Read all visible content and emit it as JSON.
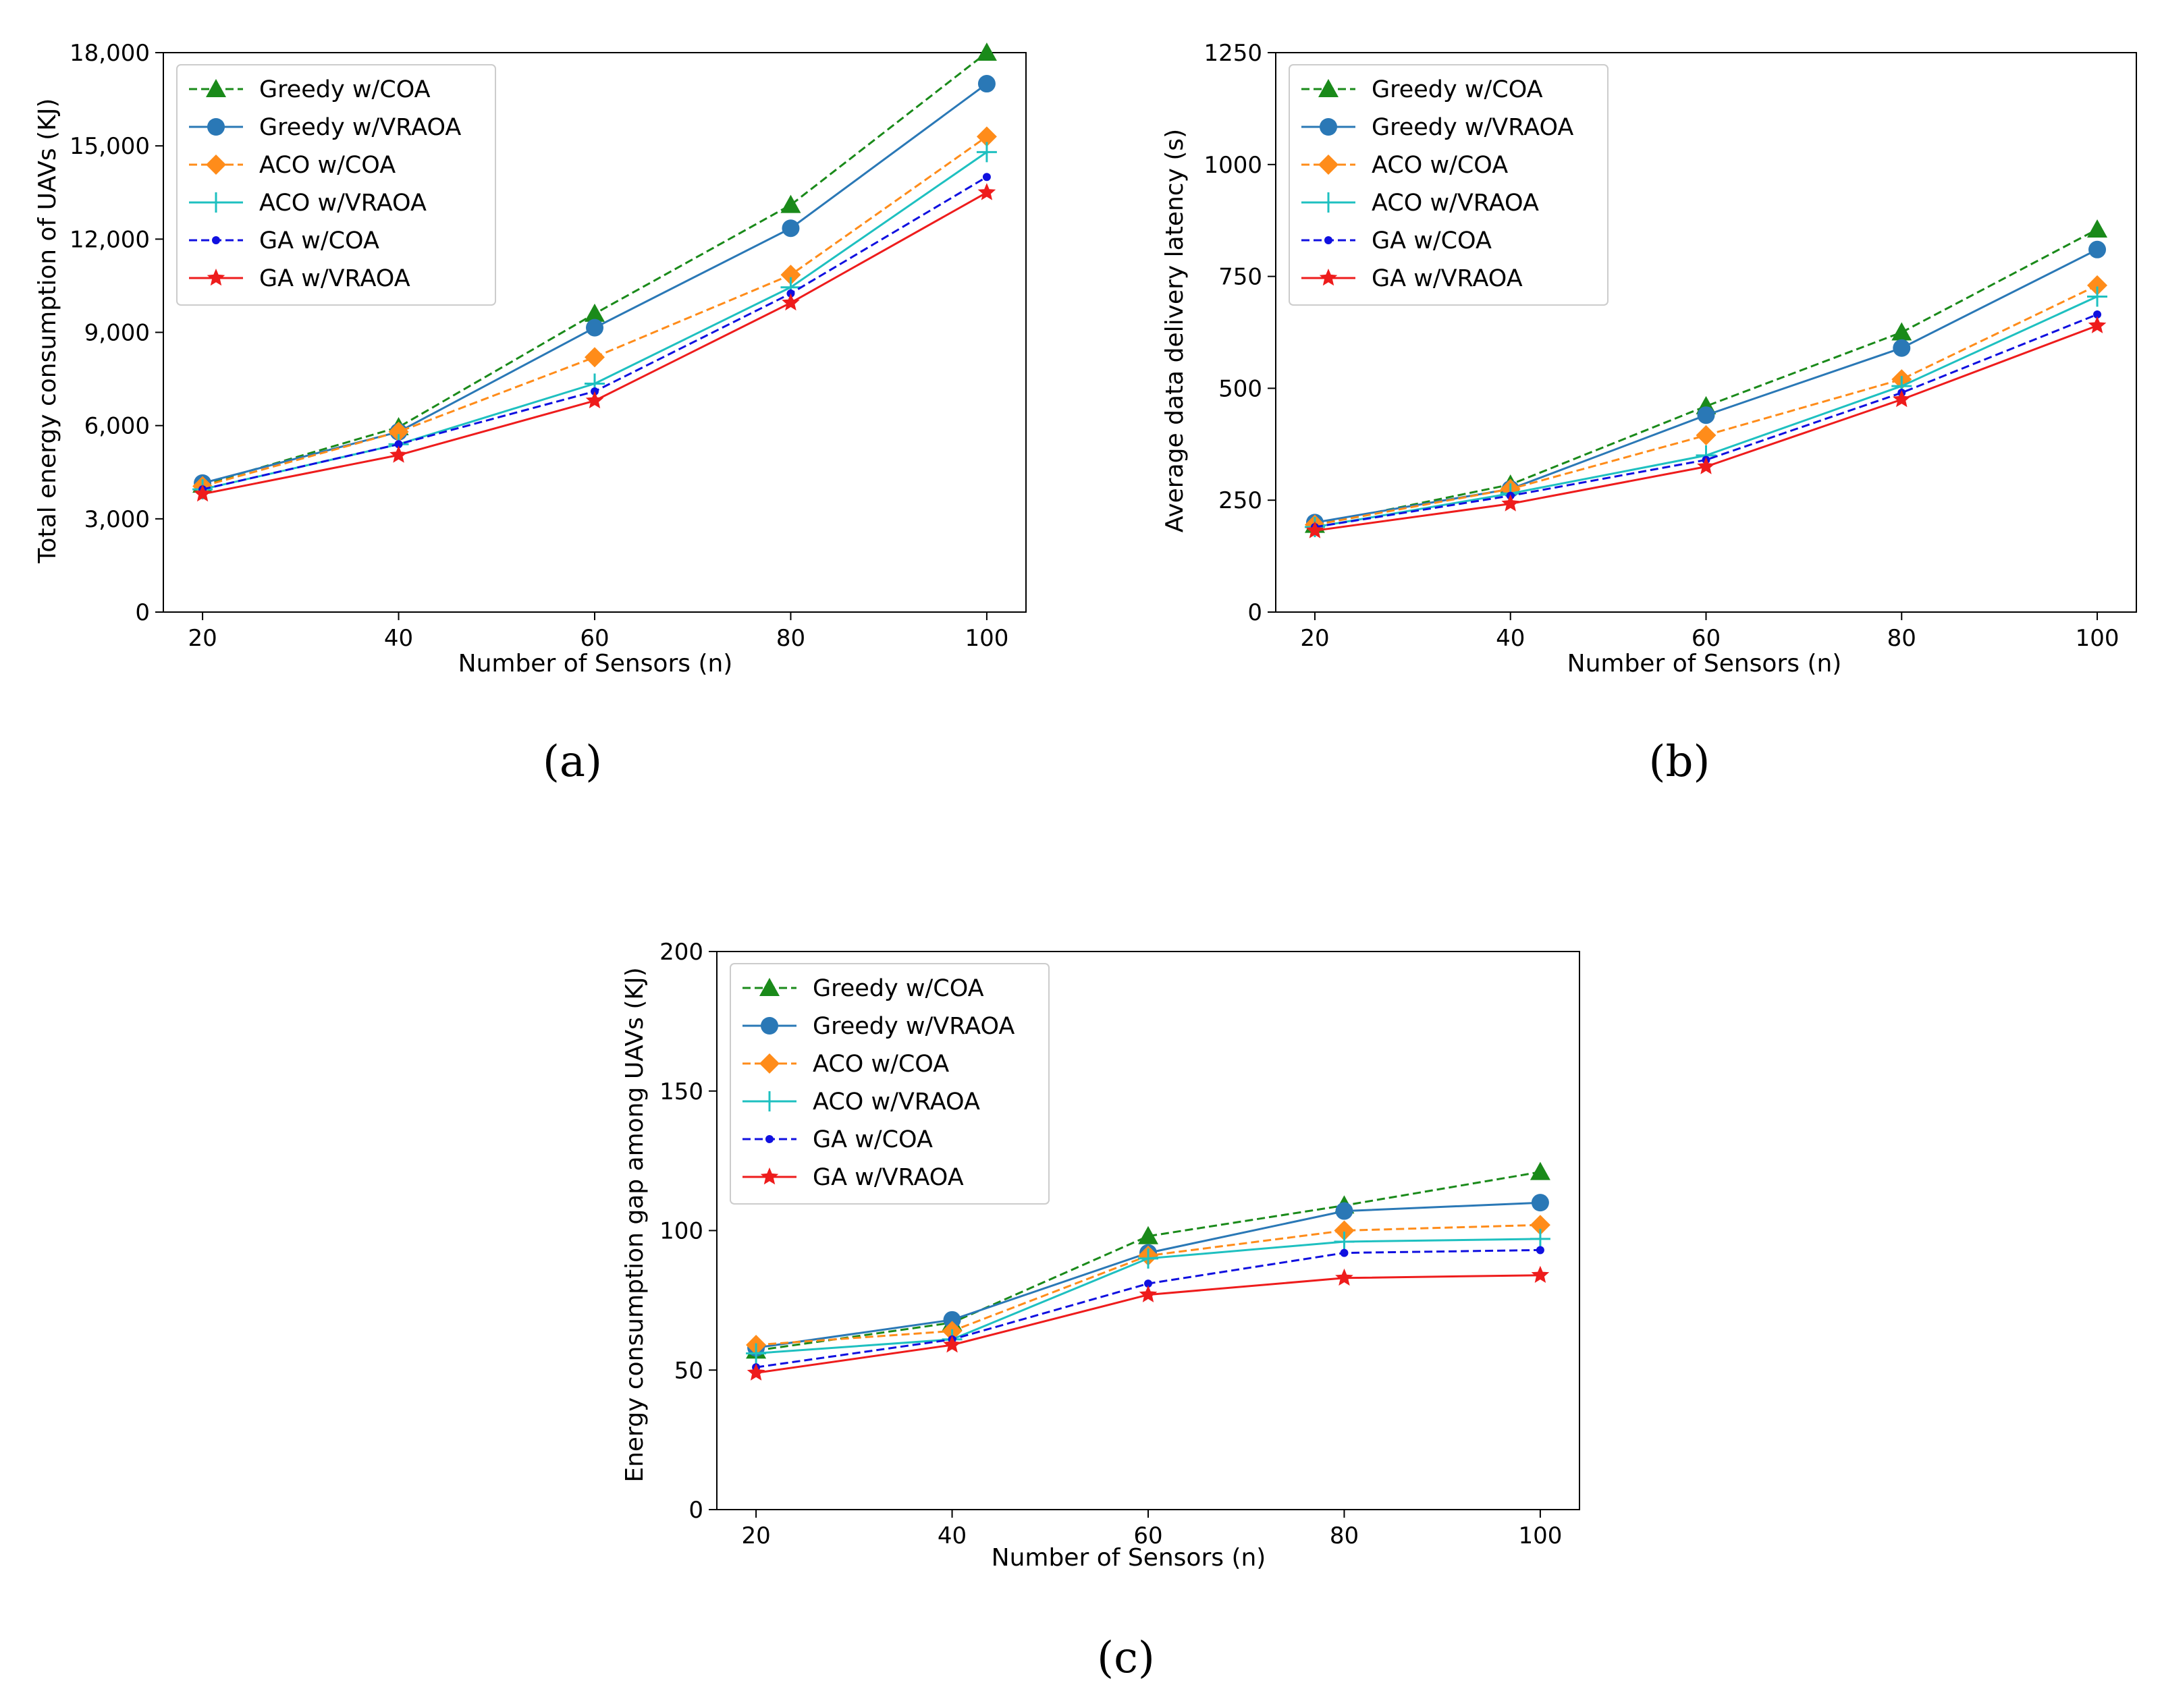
{
  "figure": {
    "captions": [
      "(a)",
      "(b)",
      "(c)"
    ]
  },
  "colors": {
    "Greedy w/COA": "#1a8a1a",
    "Greedy w/VRAOA": "#2a78b6",
    "ACO w/COA": "#ff8c1a",
    "ACO w/VRAOA": "#1ec0c0",
    "GA w/COA": "#1010e0",
    "GA w/VRAOA": "#ee1c1c"
  },
  "chart_data": [
    {
      "type": "line",
      "caption": "(a)",
      "title": "",
      "xlabel": "Number of Sensors (n)",
      "ylabel": "Total energy consumption of UAVs (KJ)",
      "x": [
        20,
        40,
        60,
        80,
        100
      ],
      "xlim": [
        16,
        104
      ],
      "ylim": [
        0,
        18000
      ],
      "yticks": [
        0,
        3000,
        6000,
        9000,
        12000,
        15000,
        18000
      ],
      "ytick_labels": [
        "0",
        "3,000",
        "6,000",
        "9,000",
        "12,000",
        "15,000",
        "18,000"
      ],
      "xtick_labels": [
        "20",
        "40",
        "60",
        "80",
        "100"
      ],
      "legend": "top-left",
      "series": [
        {
          "name": "Greedy w/COA",
          "values": [
            4100,
            5950,
            9600,
            13100,
            18000
          ]
        },
        {
          "name": "Greedy w/VRAOA",
          "values": [
            4150,
            5800,
            9150,
            12350,
            17000
          ]
        },
        {
          "name": "ACO w/COA",
          "values": [
            4050,
            5800,
            8200,
            10850,
            15300
          ]
        },
        {
          "name": "ACO w/VRAOA",
          "values": [
            3950,
            5400,
            7350,
            10450,
            14800
          ]
        },
        {
          "name": "GA w/COA",
          "values": [
            3950,
            5400,
            7100,
            10250,
            14000
          ]
        },
        {
          "name": "GA w/VRAOA",
          "values": [
            3800,
            5050,
            6800,
            9950,
            13500
          ]
        }
      ]
    },
    {
      "type": "line",
      "caption": "(b)",
      "title": "",
      "xlabel": "Number of Sensors (n)",
      "ylabel": "Average data delivery latency (s)",
      "x": [
        20,
        40,
        60,
        80,
        100
      ],
      "xlim": [
        16,
        104
      ],
      "ylim": [
        0,
        1250
      ],
      "yticks": [
        0,
        250,
        500,
        750,
        1000,
        1250
      ],
      "ytick_labels": [
        "0",
        "250",
        "500",
        "750",
        "1000",
        "1250"
      ],
      "xtick_labels": [
        "20",
        "40",
        "60",
        "80",
        "100"
      ],
      "legend": "top-left",
      "series": [
        {
          "name": "Greedy w/COA",
          "values": [
            195,
            285,
            460,
            625,
            855
          ]
        },
        {
          "name": "Greedy w/VRAOA",
          "values": [
            200,
            275,
            440,
            590,
            810
          ]
        },
        {
          "name": "ACO w/COA",
          "values": [
            195,
            275,
            395,
            520,
            730
          ]
        },
        {
          "name": "ACO w/VRAOA",
          "values": [
            190,
            265,
            350,
            505,
            705
          ]
        },
        {
          "name": "GA w/COA",
          "values": [
            190,
            260,
            340,
            490,
            665
          ]
        },
        {
          "name": "GA w/VRAOA",
          "values": [
            182,
            242,
            325,
            475,
            640
          ]
        }
      ]
    },
    {
      "type": "line",
      "caption": "(c)",
      "title": "",
      "xlabel": "Number of Sensors (n)",
      "ylabel": "Energy consumption gap among UAVs (KJ)",
      "x": [
        20,
        40,
        60,
        80,
        100
      ],
      "xlim": [
        16,
        104
      ],
      "ylim": [
        0,
        200
      ],
      "yticks": [
        0,
        50,
        100,
        150,
        200
      ],
      "ytick_labels": [
        "0",
        "50",
        "100",
        "150",
        "200"
      ],
      "xtick_labels": [
        "20",
        "40",
        "60",
        "80",
        "100"
      ],
      "legend": "top-left",
      "series": [
        {
          "name": "Greedy w/COA",
          "values": [
            57,
            67,
            98,
            109,
            121
          ]
        },
        {
          "name": "Greedy w/VRAOA",
          "values": [
            58,
            68,
            92,
            107,
            110
          ]
        },
        {
          "name": "ACO w/COA",
          "values": [
            59,
            64,
            91,
            100,
            102
          ]
        },
        {
          "name": "ACO w/VRAOA",
          "values": [
            56,
            61,
            90,
            96,
            97
          ]
        },
        {
          "name": "GA w/COA",
          "values": [
            51,
            61,
            81,
            92,
            93
          ]
        },
        {
          "name": "GA w/VRAOA",
          "values": [
            49,
            59,
            77,
            83,
            84
          ]
        }
      ]
    }
  ]
}
